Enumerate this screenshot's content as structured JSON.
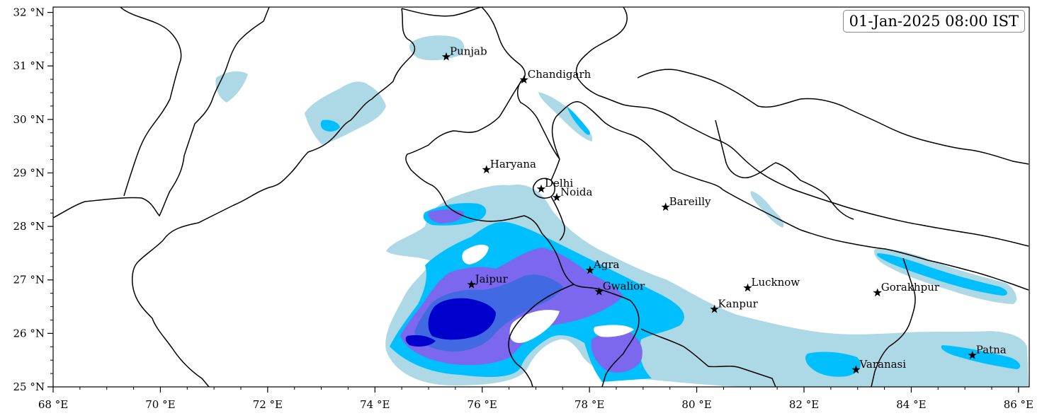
{
  "timestamp": "01-Jan-2025 08:00 IST",
  "map": {
    "lon_range": [
      68,
      86.2
    ],
    "lat_range": [
      25,
      32.1
    ],
    "x_ticks": [
      {
        "value": 68,
        "label": "68 °E"
      },
      {
        "value": 70,
        "label": "70 °E"
      },
      {
        "value": 72,
        "label": "72 °E"
      },
      {
        "value": 74,
        "label": "74 °E"
      },
      {
        "value": 76,
        "label": "76 °E"
      },
      {
        "value": 78,
        "label": "78 °E"
      },
      {
        "value": 80,
        "label": "80 °E"
      },
      {
        "value": 82,
        "label": "82 °E"
      },
      {
        "value": 84,
        "label": "84 °E"
      },
      {
        "value": 86,
        "label": "86 °E"
      }
    ],
    "y_ticks": [
      {
        "value": 25,
        "label": "25 °N"
      },
      {
        "value": 26,
        "label": "26 °N"
      },
      {
        "value": 27,
        "label": "27 °N"
      },
      {
        "value": 28,
        "label": "28 °N"
      },
      {
        "value": 29,
        "label": "29 °N"
      },
      {
        "value": 30,
        "label": "30 °N"
      },
      {
        "value": 31,
        "label": "31 °N"
      },
      {
        "value": 32,
        "label": "32 °N"
      }
    ],
    "colors": {
      "level1": "#add8e6",
      "level2": "#00bfff",
      "level3": "#1e90ff",
      "level4": "#7b68ee",
      "level5": "#4169e1",
      "level6": "#0000cd",
      "border": "#000000"
    }
  },
  "cities": [
    {
      "name": "Punjab",
      "lon": 75.33,
      "lat": 31.17
    },
    {
      "name": "Chandigarh",
      "lon": 76.78,
      "lat": 30.74
    },
    {
      "name": "Haryana",
      "lon": 76.08,
      "lat": 29.06
    },
    {
      "name": "Delhi",
      "lon": 77.1,
      "lat": 28.7
    },
    {
      "name": "Noida",
      "lon": 77.39,
      "lat": 28.54
    },
    {
      "name": "Bareilly",
      "lon": 79.42,
      "lat": 28.36
    },
    {
      "name": "Agra",
      "lon": 78.01,
      "lat": 27.18
    },
    {
      "name": "Jaipur",
      "lon": 75.8,
      "lat": 26.91
    },
    {
      "name": "Gwalior",
      "lon": 78.18,
      "lat": 26.78
    },
    {
      "name": "Lucknow",
      "lon": 80.95,
      "lat": 26.85
    },
    {
      "name": "Kanpur",
      "lon": 80.33,
      "lat": 26.45
    },
    {
      "name": "Gorakhpur",
      "lon": 83.37,
      "lat": 26.76
    },
    {
      "name": "Varanasi",
      "lon": 82.97,
      "lat": 25.32
    },
    {
      "name": "Patna",
      "lon": 85.14,
      "lat": 25.59
    }
  ]
}
